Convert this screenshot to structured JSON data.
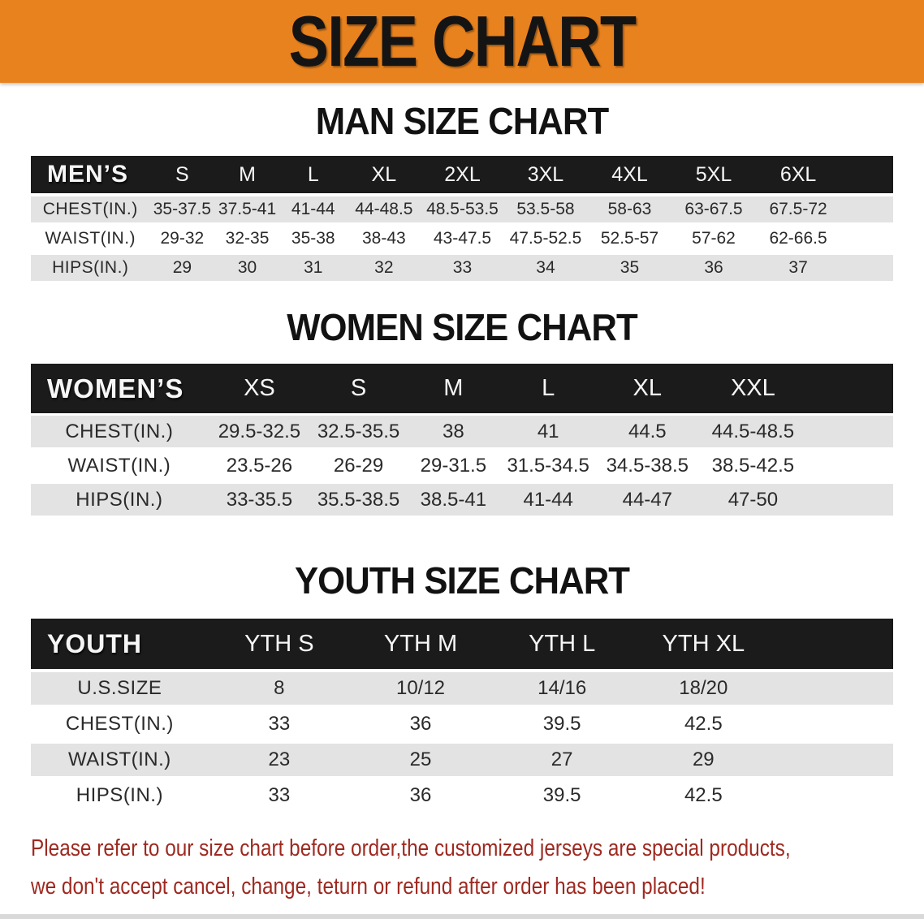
{
  "banner": {
    "title": "SIZE CHART"
  },
  "colors": {
    "banner_bg": "#E8821E",
    "table_header_bg": "#1B1B1B",
    "row_alt": "#E3E3E3",
    "disclaimer_text": "#9E2920"
  },
  "sections": [
    {
      "title": "MAN SIZE CHART",
      "header_label": "MEN’S",
      "columns": [
        "S",
        "M",
        "L",
        "XL",
        "2XL",
        "3XL",
        "4XL",
        "5XL",
        "6XL"
      ],
      "rows": [
        {
          "label": "CHEST(IN.)",
          "values": [
            "35-37.5",
            "37.5-41",
            "41-44",
            "44-48.5",
            "48.5-53.5",
            "53.5-58",
            "58-63",
            "63-67.5",
            "67.5-72"
          ]
        },
        {
          "label": "WAIST(IN.)",
          "values": [
            "29-32",
            "32-35",
            "35-38",
            "38-43",
            "43-47.5",
            "47.5-52.5",
            "52.5-57",
            "57-62",
            "62-66.5"
          ]
        },
        {
          "label": "HIPS(IN.)",
          "values": [
            "29",
            "30",
            "31",
            "32",
            "33",
            "34",
            "35",
            "36",
            "37"
          ]
        }
      ]
    },
    {
      "title": "WOMEN SIZE CHART",
      "header_label": "WOMEN’S",
      "columns": [
        "XS",
        "S",
        "M",
        "L",
        "XL",
        "XXL"
      ],
      "rows": [
        {
          "label": "CHEST(IN.)",
          "values": [
            "29.5-32.5",
            "32.5-35.5",
            "38",
            "41",
            "44.5",
            "44.5-48.5"
          ]
        },
        {
          "label": "WAIST(IN.)",
          "values": [
            "23.5-26",
            "26-29",
            "29-31.5",
            "31.5-34.5",
            "34.5-38.5",
            "38.5-42.5"
          ]
        },
        {
          "label": "HIPS(IN.)",
          "values": [
            "33-35.5",
            "35.5-38.5",
            "38.5-41",
            "41-44",
            "44-47",
            "47-50"
          ]
        }
      ]
    },
    {
      "title": "YOUTH SIZE CHART",
      "header_label": "YOUTH",
      "columns": [
        "YTH S",
        "YTH M",
        "YTH L",
        "YTH XL"
      ],
      "rows": [
        {
          "label": "U.S.SIZE",
          "values": [
            "8",
            "10/12",
            "14/16",
            "18/20"
          ]
        },
        {
          "label": "CHEST(IN.)",
          "values": [
            "33",
            "36",
            "39.5",
            "42.5"
          ]
        },
        {
          "label": "WAIST(IN.)",
          "values": [
            "23",
            "25",
            "27",
            "29"
          ]
        },
        {
          "label": "HIPS(IN.)",
          "values": [
            "33",
            "36",
            "39.5",
            "42.5"
          ]
        }
      ]
    }
  ],
  "disclaimer": {
    "line1": "Please refer to our size chart before order,the customized jerseys are special products,",
    "line2": "we don't accept cancel, change, teturn or refund after order has been placed!"
  }
}
